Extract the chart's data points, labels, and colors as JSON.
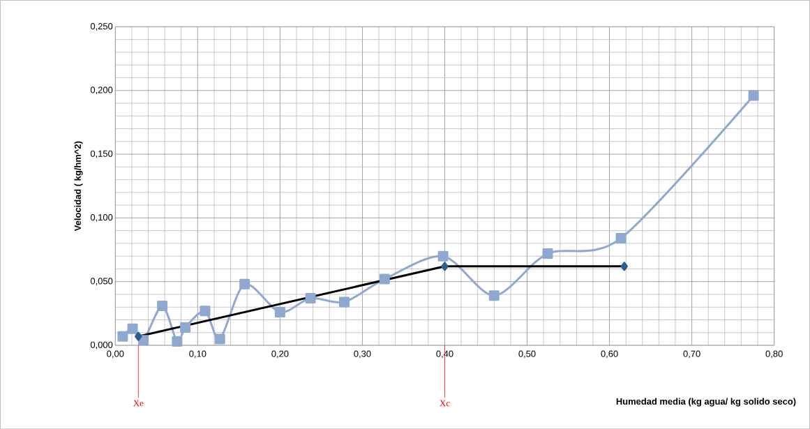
{
  "chart_data": {
    "type": "line",
    "xlabel": "Humedad media (kg agua/ kg solido seco)",
    "ylabel": "Velocidad ( kg/hm^2)",
    "xlim": [
      0,
      0.8
    ],
    "ylim": [
      0,
      0.25
    ],
    "xticks": [
      {
        "value": 0,
        "label": "0,00"
      },
      {
        "value": 0.1,
        "label": "0,10"
      },
      {
        "value": 0.2,
        "label": "0,20"
      },
      {
        "value": 0.3,
        "label": "0,30"
      },
      {
        "value": 0.4,
        "label": "0,40"
      },
      {
        "value": 0.5,
        "label": "0,50"
      },
      {
        "value": 0.6,
        "label": "0,60"
      },
      {
        "value": 0.7,
        "label": "0,70"
      },
      {
        "value": 0.8,
        "label": "0,80"
      }
    ],
    "yticks": [
      {
        "value": 0,
        "label": "0,000"
      },
      {
        "value": 0.05,
        "label": "0,050"
      },
      {
        "value": 0.1,
        "label": "0,100"
      },
      {
        "value": 0.15,
        "label": "0,150"
      },
      {
        "value": 0.2,
        "label": "0,200"
      },
      {
        "value": 0.25,
        "label": "0,250"
      }
    ],
    "grid": true,
    "series": [
      {
        "color": "#8ea8cf",
        "marker": "square",
        "x": [
          0.009,
          0.021,
          0.034,
          0.057,
          0.075,
          0.085,
          0.109,
          0.127,
          0.157,
          0.2,
          0.237,
          0.278,
          0.327,
          0.398,
          0.46,
          0.525,
          0.614,
          0.775
        ],
        "values": [
          0.007,
          0.013,
          0.004,
          0.031,
          0.003,
          0.014,
          0.027,
          0.005,
          0.048,
          0.026,
          0.037,
          0.034,
          0.052,
          0.07,
          0.039,
          0.072,
          0.084,
          0.196
        ]
      },
      {
        "color": "#000000",
        "marker": "diamond",
        "x": [
          0.028,
          0.4,
          0.618
        ],
        "values": [
          0.007,
          0.062,
          0.062
        ]
      }
    ],
    "ref_lines": [
      {
        "axis": "x",
        "value": 0.028,
        "label": "Xe",
        "color": "#ff0000"
      },
      {
        "axis": "x",
        "value": 0.4,
        "label": "Xc",
        "color": "#ff0000"
      }
    ]
  }
}
